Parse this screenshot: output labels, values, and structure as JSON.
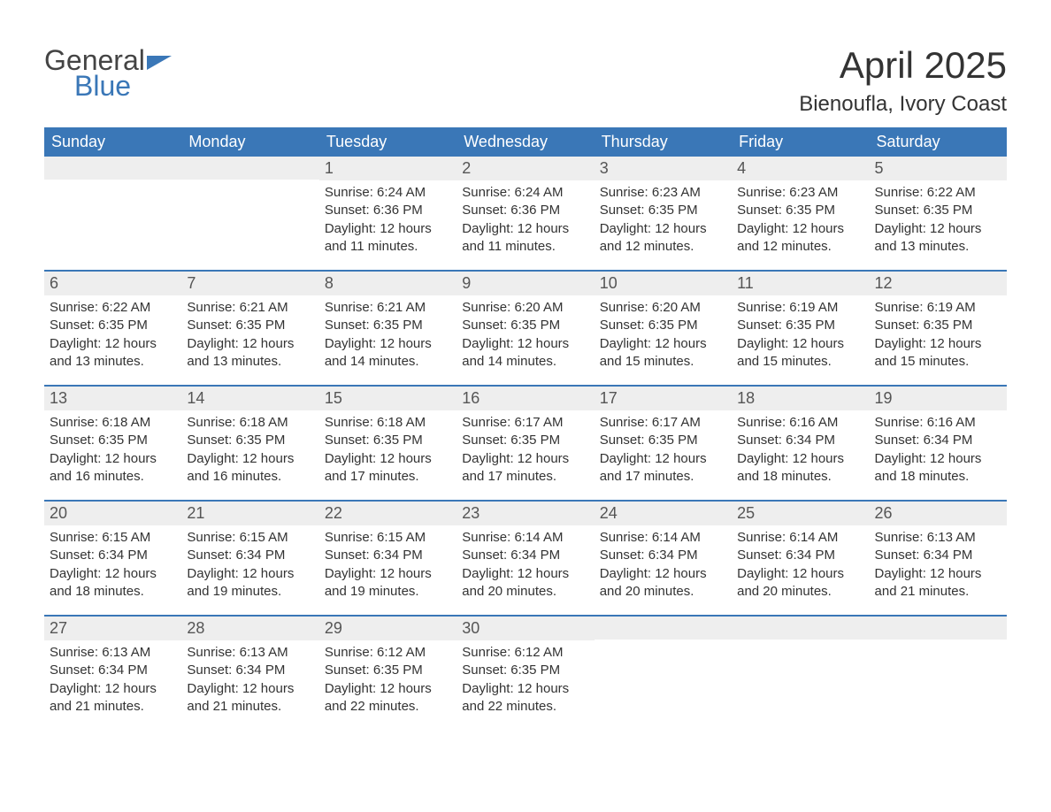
{
  "logo": {
    "text_general": "General",
    "text_blue": "Blue",
    "accent_color": "#3a77b7"
  },
  "title": "April 2025",
  "location": "Bienoufla, Ivory Coast",
  "colors": {
    "header_bg": "#3a77b7",
    "header_text": "#ffffff",
    "daynum_bg": "#eeeeee",
    "week_divider": "#3a77b7",
    "body_text": "#333333",
    "page_bg": "#ffffff"
  },
  "weekdays": [
    "Sunday",
    "Monday",
    "Tuesday",
    "Wednesday",
    "Thursday",
    "Friday",
    "Saturday"
  ],
  "weeks": [
    [
      {
        "num": "",
        "sunrise": "",
        "sunset": "",
        "daylight": ""
      },
      {
        "num": "",
        "sunrise": "",
        "sunset": "",
        "daylight": ""
      },
      {
        "num": "1",
        "sunrise": "Sunrise: 6:24 AM",
        "sunset": "Sunset: 6:36 PM",
        "daylight": "Daylight: 12 hours and 11 minutes."
      },
      {
        "num": "2",
        "sunrise": "Sunrise: 6:24 AM",
        "sunset": "Sunset: 6:36 PM",
        "daylight": "Daylight: 12 hours and 11 minutes."
      },
      {
        "num": "3",
        "sunrise": "Sunrise: 6:23 AM",
        "sunset": "Sunset: 6:35 PM",
        "daylight": "Daylight: 12 hours and 12 minutes."
      },
      {
        "num": "4",
        "sunrise": "Sunrise: 6:23 AM",
        "sunset": "Sunset: 6:35 PM",
        "daylight": "Daylight: 12 hours and 12 minutes."
      },
      {
        "num": "5",
        "sunrise": "Sunrise: 6:22 AM",
        "sunset": "Sunset: 6:35 PM",
        "daylight": "Daylight: 12 hours and 13 minutes."
      }
    ],
    [
      {
        "num": "6",
        "sunrise": "Sunrise: 6:22 AM",
        "sunset": "Sunset: 6:35 PM",
        "daylight": "Daylight: 12 hours and 13 minutes."
      },
      {
        "num": "7",
        "sunrise": "Sunrise: 6:21 AM",
        "sunset": "Sunset: 6:35 PM",
        "daylight": "Daylight: 12 hours and 13 minutes."
      },
      {
        "num": "8",
        "sunrise": "Sunrise: 6:21 AM",
        "sunset": "Sunset: 6:35 PM",
        "daylight": "Daylight: 12 hours and 14 minutes."
      },
      {
        "num": "9",
        "sunrise": "Sunrise: 6:20 AM",
        "sunset": "Sunset: 6:35 PM",
        "daylight": "Daylight: 12 hours and 14 minutes."
      },
      {
        "num": "10",
        "sunrise": "Sunrise: 6:20 AM",
        "sunset": "Sunset: 6:35 PM",
        "daylight": "Daylight: 12 hours and 15 minutes."
      },
      {
        "num": "11",
        "sunrise": "Sunrise: 6:19 AM",
        "sunset": "Sunset: 6:35 PM",
        "daylight": "Daylight: 12 hours and 15 minutes."
      },
      {
        "num": "12",
        "sunrise": "Sunrise: 6:19 AM",
        "sunset": "Sunset: 6:35 PM",
        "daylight": "Daylight: 12 hours and 15 minutes."
      }
    ],
    [
      {
        "num": "13",
        "sunrise": "Sunrise: 6:18 AM",
        "sunset": "Sunset: 6:35 PM",
        "daylight": "Daylight: 12 hours and 16 minutes."
      },
      {
        "num": "14",
        "sunrise": "Sunrise: 6:18 AM",
        "sunset": "Sunset: 6:35 PM",
        "daylight": "Daylight: 12 hours and 16 minutes."
      },
      {
        "num": "15",
        "sunrise": "Sunrise: 6:18 AM",
        "sunset": "Sunset: 6:35 PM",
        "daylight": "Daylight: 12 hours and 17 minutes."
      },
      {
        "num": "16",
        "sunrise": "Sunrise: 6:17 AM",
        "sunset": "Sunset: 6:35 PM",
        "daylight": "Daylight: 12 hours and 17 minutes."
      },
      {
        "num": "17",
        "sunrise": "Sunrise: 6:17 AM",
        "sunset": "Sunset: 6:35 PM",
        "daylight": "Daylight: 12 hours and 17 minutes."
      },
      {
        "num": "18",
        "sunrise": "Sunrise: 6:16 AM",
        "sunset": "Sunset: 6:34 PM",
        "daylight": "Daylight: 12 hours and 18 minutes."
      },
      {
        "num": "19",
        "sunrise": "Sunrise: 6:16 AM",
        "sunset": "Sunset: 6:34 PM",
        "daylight": "Daylight: 12 hours and 18 minutes."
      }
    ],
    [
      {
        "num": "20",
        "sunrise": "Sunrise: 6:15 AM",
        "sunset": "Sunset: 6:34 PM",
        "daylight": "Daylight: 12 hours and 18 minutes."
      },
      {
        "num": "21",
        "sunrise": "Sunrise: 6:15 AM",
        "sunset": "Sunset: 6:34 PM",
        "daylight": "Daylight: 12 hours and 19 minutes."
      },
      {
        "num": "22",
        "sunrise": "Sunrise: 6:15 AM",
        "sunset": "Sunset: 6:34 PM",
        "daylight": "Daylight: 12 hours and 19 minutes."
      },
      {
        "num": "23",
        "sunrise": "Sunrise: 6:14 AM",
        "sunset": "Sunset: 6:34 PM",
        "daylight": "Daylight: 12 hours and 20 minutes."
      },
      {
        "num": "24",
        "sunrise": "Sunrise: 6:14 AM",
        "sunset": "Sunset: 6:34 PM",
        "daylight": "Daylight: 12 hours and 20 minutes."
      },
      {
        "num": "25",
        "sunrise": "Sunrise: 6:14 AM",
        "sunset": "Sunset: 6:34 PM",
        "daylight": "Daylight: 12 hours and 20 minutes."
      },
      {
        "num": "26",
        "sunrise": "Sunrise: 6:13 AM",
        "sunset": "Sunset: 6:34 PM",
        "daylight": "Daylight: 12 hours and 21 minutes."
      }
    ],
    [
      {
        "num": "27",
        "sunrise": "Sunrise: 6:13 AM",
        "sunset": "Sunset: 6:34 PM",
        "daylight": "Daylight: 12 hours and 21 minutes."
      },
      {
        "num": "28",
        "sunrise": "Sunrise: 6:13 AM",
        "sunset": "Sunset: 6:34 PM",
        "daylight": "Daylight: 12 hours and 21 minutes."
      },
      {
        "num": "29",
        "sunrise": "Sunrise: 6:12 AM",
        "sunset": "Sunset: 6:35 PM",
        "daylight": "Daylight: 12 hours and 22 minutes."
      },
      {
        "num": "30",
        "sunrise": "Sunrise: 6:12 AM",
        "sunset": "Sunset: 6:35 PM",
        "daylight": "Daylight: 12 hours and 22 minutes."
      },
      {
        "num": "",
        "sunrise": "",
        "sunset": "",
        "daylight": ""
      },
      {
        "num": "",
        "sunrise": "",
        "sunset": "",
        "daylight": ""
      },
      {
        "num": "",
        "sunrise": "",
        "sunset": "",
        "daylight": ""
      }
    ]
  ]
}
